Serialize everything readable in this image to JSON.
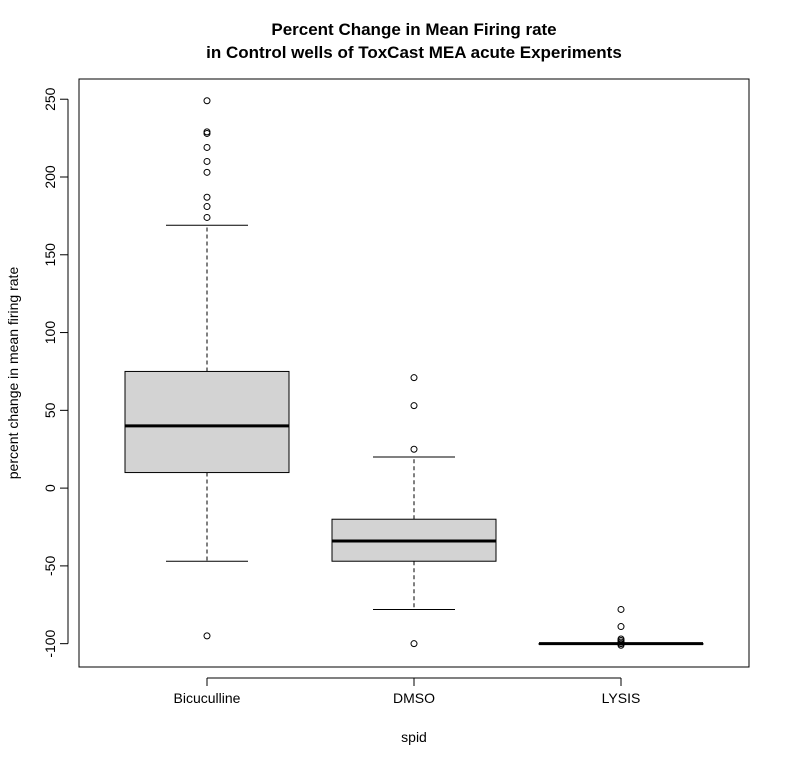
{
  "chart_data": {
    "type": "boxplot",
    "title_line1": "Percent Change in Mean Firing rate",
    "title_line2": "in Control wells of ToxCast MEA acute Experiments",
    "xlabel": "spid",
    "ylabel": "percent change in mean firing rate",
    "ylim": [
      -115,
      263
    ],
    "yticks": [
      -100,
      -50,
      0,
      50,
      100,
      150,
      200,
      250
    ],
    "ytick_labels": [
      "-100",
      "-50",
      "0",
      "50",
      "100",
      "150",
      "200",
      "250"
    ],
    "box_fill": "#d3d3d3",
    "categories": [
      "Bicuculline",
      "DMSO",
      "LYSIS"
    ],
    "boxes": [
      {
        "name": "Bicuculline",
        "whisker_low": -47,
        "q1": 10,
        "median": 40,
        "q3": 75,
        "whisker_high": 169,
        "outliers": [
          249,
          229,
          228,
          219,
          210,
          203,
          187,
          181,
          174,
          -95
        ]
      },
      {
        "name": "DMSO",
        "whisker_low": -78,
        "q1": -47,
        "median": -34,
        "q3": -20,
        "whisker_high": 20,
        "outliers": [
          71,
          53,
          25,
          -100
        ]
      },
      {
        "name": "LYSIS",
        "whisker_low": -100,
        "q1": -100,
        "median": -100,
        "q3": -100,
        "whisker_high": -100,
        "outliers": [
          -78,
          -89,
          -97,
          -98,
          -99,
          -100,
          -101
        ]
      }
    ]
  }
}
